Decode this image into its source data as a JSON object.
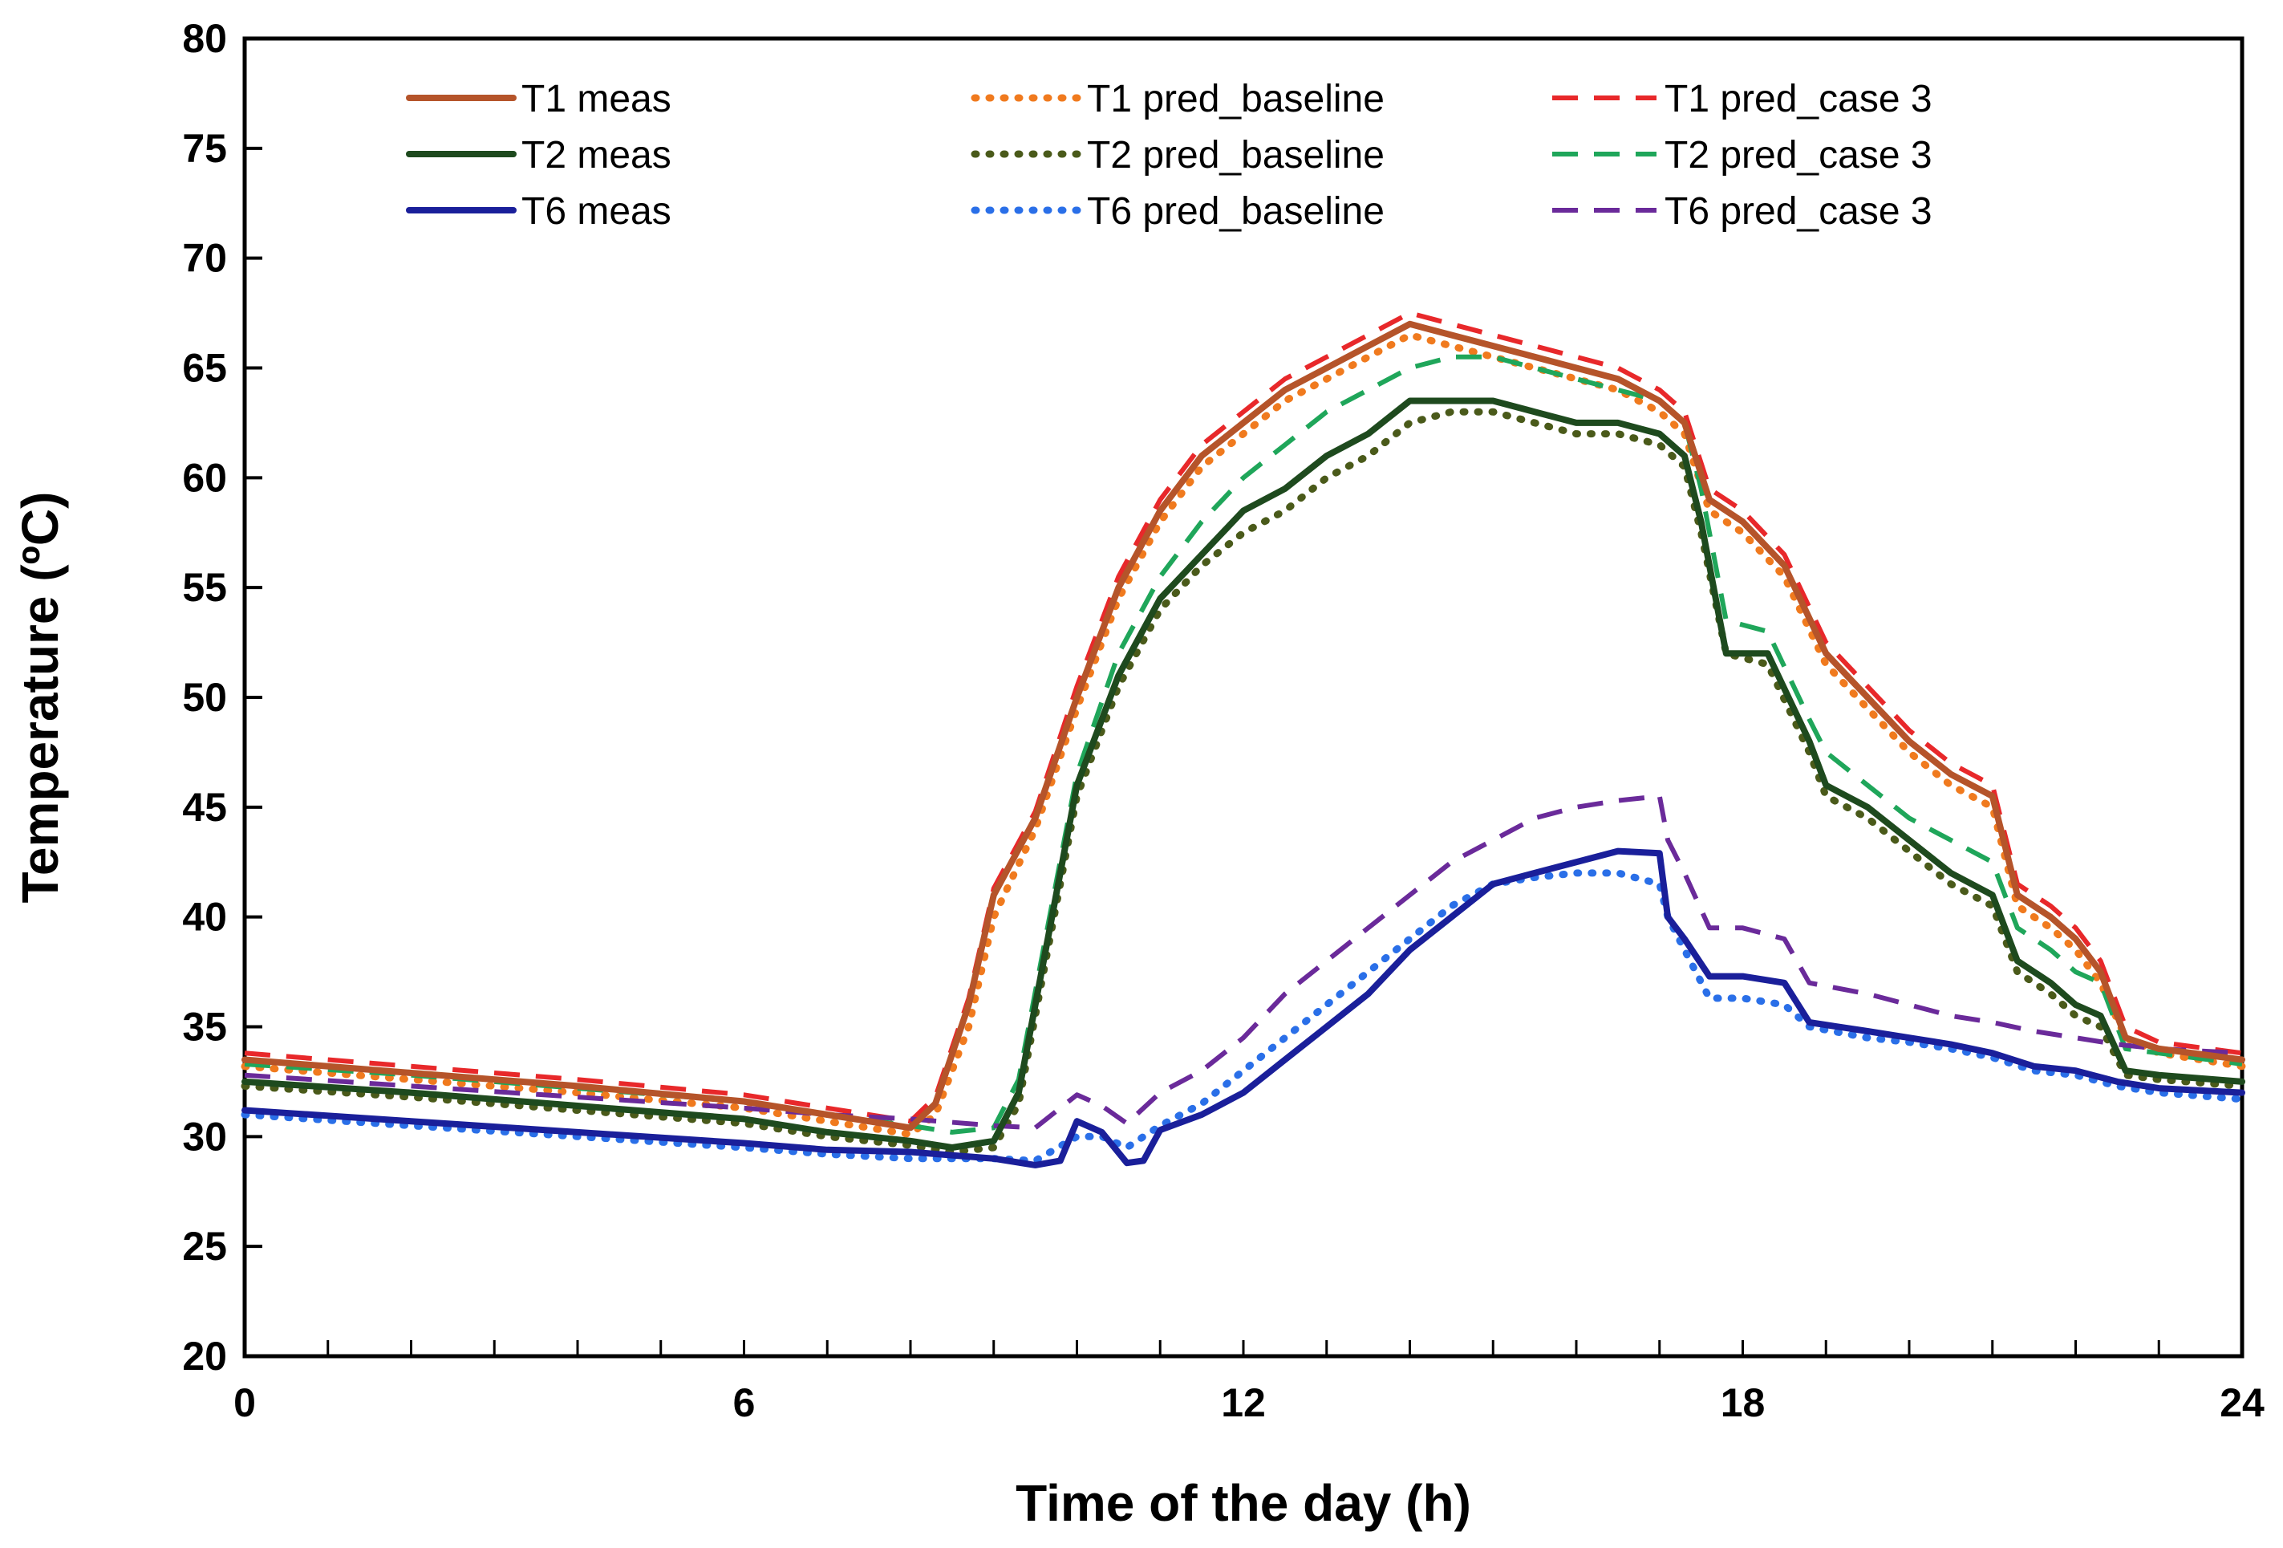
{
  "chart_data": {
    "type": "line",
    "title": "",
    "xlabel": "Time of the day (h)",
    "ylabel": "Temperature (ºC)",
    "xlim": [
      0,
      24
    ],
    "ylim": [
      20,
      80
    ],
    "xticks": [
      0,
      6,
      12,
      18,
      24
    ],
    "yticks": [
      20,
      25,
      30,
      35,
      40,
      45,
      50,
      55,
      60,
      65,
      70,
      75,
      80
    ],
    "xtick_labels": [
      "0",
      "6",
      "12",
      "18",
      "24"
    ],
    "ytick_labels": [
      "20",
      "25",
      "30",
      "35",
      "40",
      "45",
      "50",
      "55",
      "60",
      "65",
      "70",
      "75",
      "80"
    ],
    "grid": false,
    "legend_position": "top",
    "series": [
      {
        "name": "T1 meas",
        "color": "#b5542a",
        "style": "solid",
        "x": [
          0,
          2,
          4,
          6,
          7,
          8,
          8.3,
          8.7,
          9,
          9.5,
          10,
          10.5,
          11,
          11.5,
          12,
          12.5,
          13,
          13.5,
          14,
          14.5,
          15,
          15.5,
          16,
          16.5,
          17,
          17.3,
          17.6,
          18,
          18.5,
          19,
          19.5,
          20,
          20.5,
          21,
          21.3,
          21.7,
          22,
          22.3,
          22.6,
          23,
          24
        ],
        "y": [
          33.5,
          32.9,
          32.3,
          31.6,
          31.0,
          30.4,
          31.5,
          36,
          41,
          44.5,
          50,
          55,
          58.5,
          61,
          62.5,
          64,
          65,
          66,
          67,
          66.5,
          66,
          65.5,
          65,
          64.5,
          63.5,
          62.5,
          59,
          58,
          56,
          52,
          50,
          48,
          46.5,
          45.5,
          41,
          40,
          39,
          37.5,
          34.5,
          34,
          33.5
        ]
      },
      {
        "name": "T2 meas",
        "color": "#1e4a1e",
        "style": "solid",
        "x": [
          0,
          2,
          4,
          6,
          7,
          8,
          8.5,
          9,
          9.3,
          9.6,
          10,
          10.5,
          11,
          11.5,
          12,
          12.5,
          13,
          13.5,
          14,
          14.5,
          15,
          15.5,
          16,
          16.5,
          17,
          17.3,
          17.5,
          17.8,
          18.3,
          18.8,
          19,
          19.5,
          20,
          20.5,
          21,
          21.3,
          21.7,
          22,
          22.3,
          22.6,
          23,
          24
        ],
        "y": [
          32.5,
          32.0,
          31.4,
          30.8,
          30.2,
          29.8,
          29.5,
          29.8,
          32,
          38,
          46,
          51,
          54.5,
          56.5,
          58.5,
          59.5,
          61,
          62,
          63.5,
          63.5,
          63.5,
          63,
          62.5,
          62.5,
          62,
          61,
          58,
          52,
          52,
          48,
          46,
          45,
          43.5,
          42,
          41,
          38,
          37,
          36,
          35.5,
          33,
          32.8,
          32.5
        ]
      },
      {
        "name": "T6 meas",
        "color": "#1a1f9a",
        "style": "solid",
        "x": [
          0,
          2,
          4,
          6,
          7,
          8,
          9,
          9.5,
          9.8,
          10,
          10.3,
          10.6,
          10.8,
          11,
          11.5,
          12,
          12.5,
          13,
          13.5,
          14,
          14.5,
          15,
          15.5,
          16,
          16.5,
          17,
          17.1,
          17.3,
          17.6,
          18,
          18.5,
          18.8,
          19.5,
          20,
          20.5,
          21,
          21.5,
          22,
          22.5,
          23,
          24
        ],
        "y": [
          31.2,
          30.7,
          30.2,
          29.7,
          29.4,
          29.3,
          29.0,
          28.7,
          28.9,
          30.7,
          30.2,
          28.8,
          28.9,
          30.3,
          31.0,
          32.0,
          33.5,
          35.0,
          36.5,
          38.5,
          40.0,
          41.5,
          42.0,
          42.5,
          43.0,
          42.9,
          40.0,
          39.0,
          37.3,
          37.3,
          37.0,
          35.2,
          34.8,
          34.5,
          34.2,
          33.8,
          33.2,
          33.0,
          32.5,
          32.2,
          32.0
        ]
      },
      {
        "name": "T1 pred_baseline",
        "color": "#f07a1e",
        "style": "dotted",
        "x": [
          0,
          2,
          4,
          6,
          7,
          8,
          8.3,
          8.7,
          9,
          9.5,
          10,
          10.5,
          11,
          11.5,
          12,
          12.5,
          13,
          13.5,
          14,
          14.5,
          15,
          15.5,
          16,
          16.5,
          17,
          17.3,
          17.6,
          18,
          18.5,
          19,
          19.5,
          20,
          20.5,
          21,
          21.3,
          21.7,
          22,
          22.3,
          22.6,
          23,
          24
        ],
        "y": [
          33.2,
          32.6,
          32.0,
          31.3,
          30.7,
          30.1,
          31.0,
          35,
          40,
          44,
          49.5,
          54.5,
          58,
          60.5,
          62,
          63.5,
          64.5,
          65.5,
          66.5,
          66,
          65.5,
          65,
          64.5,
          64,
          63,
          62,
          58.5,
          57.5,
          55.5,
          51.5,
          49.5,
          47.5,
          46,
          45,
          40.5,
          39.5,
          38.5,
          37,
          34.5,
          33.8,
          33.2
        ]
      },
      {
        "name": "T2 pred_baseline",
        "color": "#4a5a1a",
        "style": "dotted",
        "x": [
          0,
          2,
          4,
          6,
          7,
          8,
          8.5,
          9,
          9.3,
          9.6,
          10,
          10.5,
          11,
          11.5,
          12,
          12.5,
          13,
          13.5,
          14,
          14.5,
          15,
          15.5,
          16,
          16.5,
          17,
          17.3,
          17.5,
          17.8,
          18.3,
          18.8,
          19,
          19.5,
          20,
          20.5,
          21,
          21.3,
          21.7,
          22,
          22.3,
          22.6,
          23,
          24
        ],
        "y": [
          32.3,
          31.8,
          31.2,
          30.6,
          30.0,
          29.6,
          29.3,
          29.5,
          31.5,
          37.5,
          45.5,
          50.5,
          54,
          56,
          57.5,
          58.5,
          60,
          61,
          62.5,
          63,
          63,
          62.5,
          62,
          62,
          61.5,
          60.5,
          57.5,
          52,
          51.5,
          47.5,
          45.5,
          44.5,
          43,
          41.5,
          40.5,
          37.5,
          36.5,
          35.5,
          35,
          32.8,
          32.6,
          32.3
        ]
      },
      {
        "name": "T6 pred_baseline",
        "color": "#2a6fe8",
        "style": "dotted",
        "x": [
          0,
          2,
          4,
          6,
          7,
          8,
          9,
          9.5,
          10,
          10.3,
          10.6,
          11,
          11.5,
          12,
          12.5,
          13,
          13.5,
          14,
          14.5,
          15,
          15.5,
          16,
          16.5,
          17,
          17.1,
          17.3,
          17.6,
          18,
          18.5,
          18.8,
          19.5,
          20,
          20.5,
          21,
          21.5,
          22,
          22.5,
          23,
          24
        ],
        "y": [
          31.0,
          30.5,
          30.0,
          29.5,
          29.2,
          29.0,
          29.0,
          28.9,
          30.0,
          30.0,
          29.5,
          30.5,
          31.5,
          33.0,
          34.5,
          36.0,
          37.5,
          39.0,
          40.5,
          41.5,
          41.8,
          42.0,
          42.0,
          41.5,
          40.0,
          38.5,
          36.3,
          36.3,
          36.0,
          35.0,
          34.5,
          34.3,
          34.0,
          33.6,
          33.0,
          32.8,
          32.3,
          32.0,
          31.7
        ]
      },
      {
        "name": "T1 pred_case 3",
        "color": "#e8282a",
        "style": "dashed",
        "x": [
          0,
          2,
          4,
          6,
          7,
          8,
          8.3,
          8.7,
          9,
          9.5,
          10,
          10.5,
          11,
          11.5,
          12,
          12.5,
          13,
          13.5,
          14,
          14.5,
          15,
          15.5,
          16,
          16.5,
          17,
          17.3,
          17.6,
          18,
          18.5,
          19,
          19.5,
          20,
          20.5,
          21,
          21.3,
          21.7,
          22,
          22.3,
          22.6,
          23,
          24
        ],
        "y": [
          33.8,
          33.2,
          32.6,
          31.9,
          31.3,
          30.7,
          31.8,
          36.3,
          41.3,
          44.8,
          50.5,
          55.5,
          59,
          61.5,
          63,
          64.5,
          65.5,
          66.5,
          67.5,
          67,
          66.5,
          66,
          65.5,
          65,
          64,
          63,
          59.5,
          58.5,
          56.5,
          52.5,
          50.5,
          48.5,
          47,
          46,
          41.5,
          40.5,
          39.5,
          38,
          35,
          34.3,
          33.8
        ]
      },
      {
        "name": "T2 pred_case 3",
        "color": "#1fa65a",
        "style": "dashed",
        "x": [
          0,
          2,
          4,
          6,
          7,
          8,
          8.5,
          9,
          9.3,
          9.6,
          10,
          10.5,
          11,
          11.5,
          12,
          12.5,
          13,
          13.5,
          14,
          14.5,
          15,
          15.5,
          16,
          16.5,
          17,
          17.3,
          17.5,
          17.8,
          18.3,
          18.8,
          19,
          19.5,
          20,
          20.5,
          21,
          21.3,
          21.7,
          22,
          22.3,
          22.6,
          23,
          24
        ],
        "y": [
          33.3,
          32.8,
          32.2,
          31.6,
          31.0,
          30.5,
          30.2,
          30.4,
          32.6,
          38.6,
          46.5,
          52,
          55.5,
          58,
          60,
          61.5,
          63,
          64,
          65,
          65.5,
          65.5,
          65,
          64.5,
          64,
          63.5,
          62.5,
          59.5,
          53.5,
          53,
          49,
          47.5,
          46,
          44.5,
          43.5,
          42.5,
          39.5,
          38.5,
          37.5,
          37,
          34,
          33.8,
          33.3
        ]
      },
      {
        "name": "T6 pred_case 3",
        "color": "#6a2a9a",
        "style": "dashed",
        "x": [
          0,
          2,
          4,
          6,
          7,
          8,
          9,
          9.5,
          10,
          10.3,
          10.6,
          11,
          11.5,
          12,
          12.5,
          13,
          13.5,
          14,
          14.5,
          15,
          15.5,
          16,
          16.5,
          17,
          17.1,
          17.3,
          17.6,
          18,
          18.5,
          18.8,
          19.5,
          20,
          20.5,
          21,
          21.5,
          22,
          22.5,
          23,
          24
        ],
        "y": [
          32.8,
          32.3,
          31.8,
          31.3,
          31.0,
          30.8,
          30.5,
          30.4,
          31.9,
          31.4,
          30.6,
          32.0,
          33.0,
          34.5,
          36.5,
          38.0,
          39.5,
          41.0,
          42.5,
          43.5,
          44.5,
          45.0,
          45.3,
          45.5,
          43.5,
          42.0,
          39.5,
          39.5,
          39.0,
          37.0,
          36.5,
          36.0,
          35.5,
          35.2,
          34.8,
          34.5,
          34.2,
          34.0,
          33.8
        ]
      }
    ]
  }
}
